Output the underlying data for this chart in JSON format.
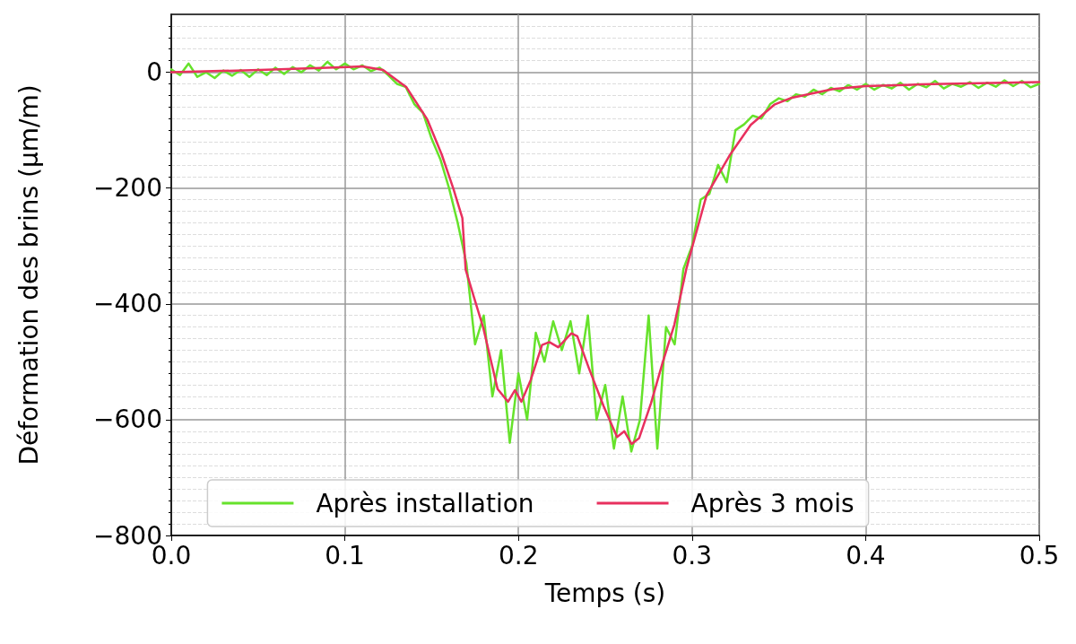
{
  "chart_data": {
    "type": "line",
    "xlabel": "Temps (s)",
    "ylabel": "Déformation des brins (µm/m)",
    "xlim": [
      0,
      0.5
    ],
    "xticks": [
      {
        "value": 0,
        "label": "0.0"
      },
      {
        "value": 0.1,
        "label": "0.1"
      },
      {
        "value": 0.2,
        "label": "0.2"
      },
      {
        "value": 0.3,
        "label": "0.3"
      },
      {
        "value": 0.4,
        "label": "0.4"
      },
      {
        "value": 0.5,
        "label": "0.5"
      }
    ],
    "ylim": [
      -800,
      100
    ],
    "yticks": [
      {
        "value": -800,
        "label": "−800"
      },
      {
        "value": -600,
        "label": "−600"
      },
      {
        "value": -400,
        "label": "−400"
      },
      {
        "value": -200,
        "label": "−200"
      },
      0
    ],
    "grid": true,
    "legend": "bottom",
    "marker": "none",
    "line_style": "solid",
    "series": [
      {
        "name": "Après installation",
        "color": "#66e22b",
        "x": [
          0,
          0.005,
          0.01,
          0.015,
          0.02,
          0.025,
          0.03,
          0.035,
          0.04,
          0.045,
          0.05,
          0.055,
          0.06,
          0.065,
          0.07,
          0.075,
          0.08,
          0.085,
          0.09,
          0.095,
          0.1,
          0.105,
          0.11,
          0.115,
          0.12,
          0.125,
          0.13,
          0.135,
          0.14,
          0.145,
          0.15,
          0.155,
          0.16,
          0.165,
          0.17,
          0.175,
          0.18,
          0.185,
          0.19,
          0.195,
          0.2,
          0.205,
          0.21,
          0.215,
          0.22,
          0.225,
          0.23,
          0.235,
          0.24,
          0.245,
          0.25,
          0.255,
          0.26,
          0.265,
          0.27,
          0.275,
          0.28,
          0.285,
          0.29,
          0.295,
          0.3,
          0.305,
          0.31,
          0.315,
          0.32,
          0.325,
          0.33,
          0.335,
          0.34,
          0.345,
          0.35,
          0.355,
          0.36,
          0.365,
          0.37,
          0.375,
          0.38,
          0.385,
          0.39,
          0.395,
          0.4,
          0.405,
          0.41,
          0.415,
          0.42,
          0.425,
          0.43,
          0.435,
          0.44,
          0.445,
          0.45,
          0.455,
          0.46,
          0.465,
          0.47,
          0.475,
          0.48,
          0.485,
          0.49,
          0.495,
          0.5
        ],
        "values": [
          5,
          -5,
          15,
          -8,
          0,
          -10,
          3,
          -6,
          4,
          -8,
          5,
          -5,
          8,
          -3,
          9,
          0,
          12,
          3,
          18,
          5,
          15,
          5,
          12,
          2,
          8,
          -5,
          -20,
          -25,
          -55,
          -70,
          -115,
          -150,
          -200,
          -260,
          -330,
          -470,
          -420,
          -560,
          -480,
          -640,
          -520,
          -600,
          -450,
          -500,
          -430,
          -480,
          -430,
          -520,
          -420,
          -600,
          -540,
          -650,
          -560,
          -655,
          -600,
          -420,
          -650,
          -440,
          -470,
          -340,
          -300,
          -220,
          -210,
          -160,
          -190,
          -100,
          -90,
          -75,
          -80,
          -55,
          -45,
          -50,
          -38,
          -42,
          -30,
          -38,
          -27,
          -33,
          -22,
          -30,
          -20,
          -30,
          -22,
          -28,
          -18,
          -30,
          -20,
          -26,
          -15,
          -28,
          -20,
          -25,
          -17,
          -27,
          -18,
          -25,
          -14,
          -24,
          -15,
          -26,
          -20
        ]
      },
      {
        "name": "Après 3 mois",
        "color": "#e8305e",
        "x": [
          0,
          0.0508,
          0.1016,
          0.11,
          0.122,
          0.1355,
          0.1474,
          0.1558,
          0.1626,
          0.1677,
          0.1696,
          0.1746,
          0.1797,
          0.188,
          0.194,
          0.198,
          0.2017,
          0.207,
          0.2136,
          0.2178,
          0.2229,
          0.2305,
          0.2339,
          0.2407,
          0.2491,
          0.2568,
          0.261,
          0.2652,
          0.2695,
          0.2763,
          0.283,
          0.2898,
          0.2966,
          0.3,
          0.3084,
          0.322,
          0.3338,
          0.3474,
          0.3575,
          0.3813,
          0.4,
          0.432,
          0.466,
          0.5
        ],
        "values": [
          0,
          4,
          9,
          10,
          4,
          -26,
          -81,
          -142,
          -202,
          -252,
          -341,
          -391,
          -441,
          -547,
          -569,
          -549,
          -569,
          -532,
          -471,
          -466,
          -475,
          -451,
          -456,
          -512,
          -577,
          -630,
          -620,
          -642,
          -632,
          -572,
          -502,
          -436,
          -341,
          -303,
          -212,
          -142,
          -91,
          -56,
          -44,
          -29,
          -24,
          -21,
          -19,
          -17
        ]
      }
    ]
  }
}
